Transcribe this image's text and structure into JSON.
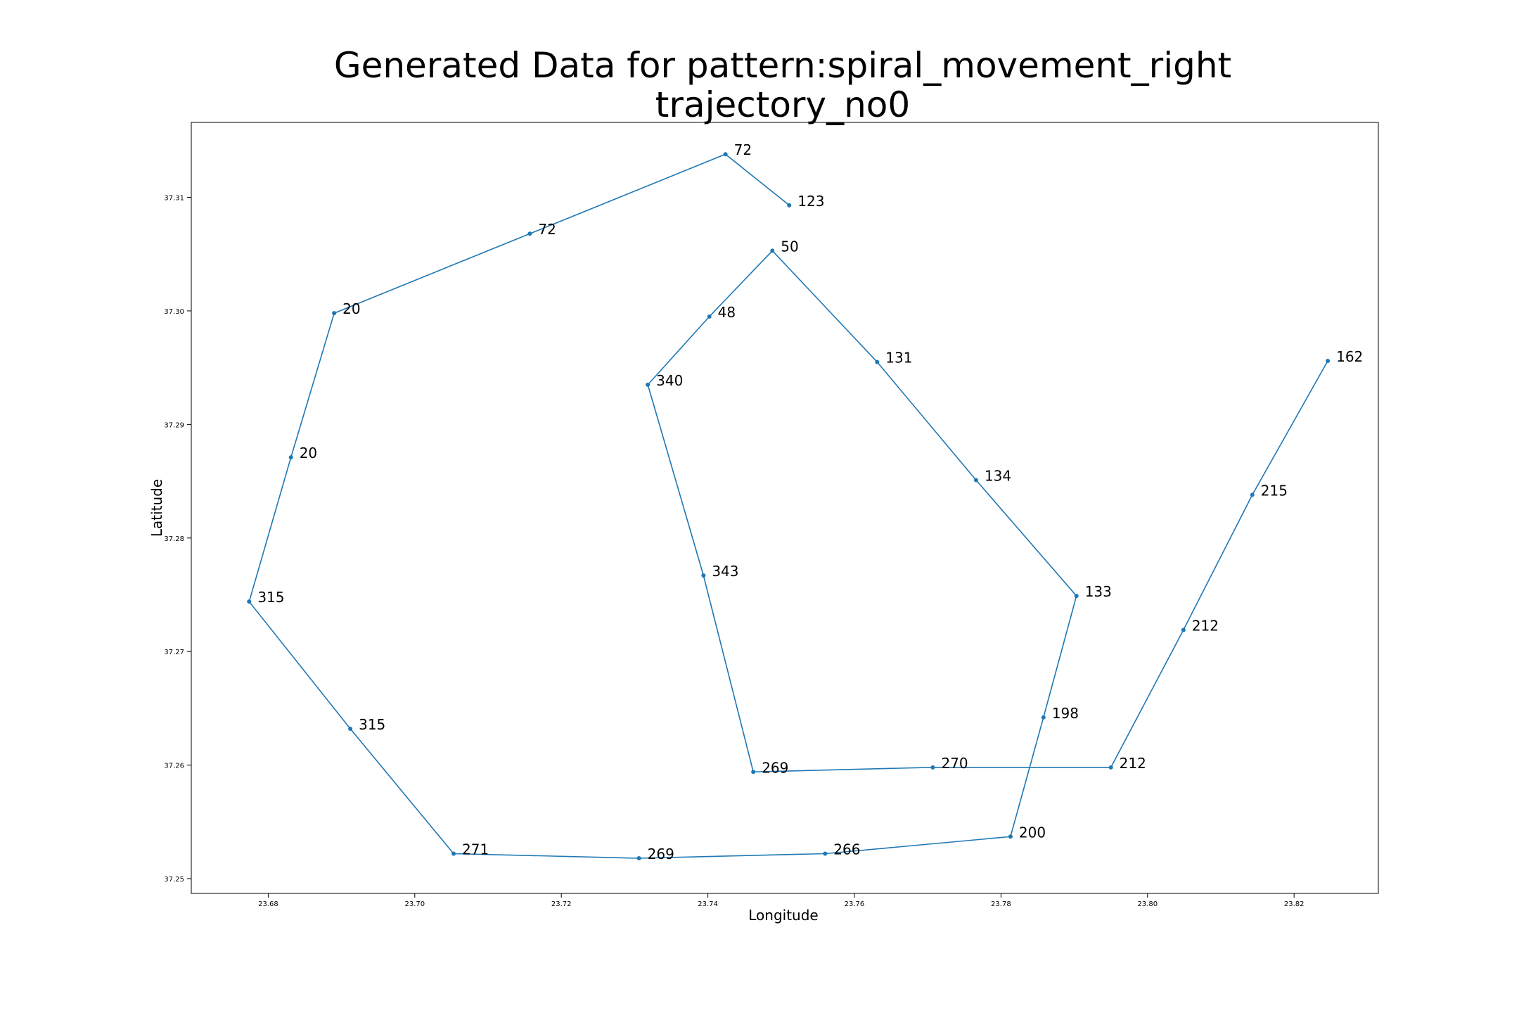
{
  "chart_data": {
    "type": "line",
    "title": [
      "Generated Data for pattern:spiral_movement_right",
      "trajectory_no0"
    ],
    "xlabel": "Longitude",
    "ylabel": "Latitude",
    "xlim": [
      23.6695,
      23.8315
    ],
    "ylim": [
      37.2487,
      37.3166
    ],
    "xticks": [
      23.68,
      23.7,
      23.72,
      23.74,
      23.76,
      23.78,
      23.8,
      23.82
    ],
    "xtick_labels": [
      "23.68",
      "23.70",
      "23.72",
      "23.74",
      "23.76",
      "23.78",
      "23.80",
      "23.82"
    ],
    "yticks": [
      37.25,
      37.26,
      37.27,
      37.28,
      37.29,
      37.3,
      37.31
    ],
    "ytick_labels": [
      "37.25",
      "37.26",
      "37.27",
      "37.28",
      "37.29",
      "37.30",
      "37.31"
    ],
    "grid": false,
    "line_color": "#1f77b4",
    "series": [
      {
        "points": [
          {
            "x": 23.7511,
            "y": 37.3093,
            "label": "123"
          },
          {
            "x": 23.7424,
            "y": 37.3138,
            "label": "72"
          },
          {
            "x": 23.7157,
            "y": 37.3068,
            "label": "72"
          },
          {
            "x": 23.689,
            "y": 37.2998,
            "label": "20"
          },
          {
            "x": 23.6831,
            "y": 37.2871,
            "label": "20"
          },
          {
            "x": 23.6774,
            "y": 37.2744,
            "label": "315"
          },
          {
            "x": 23.6912,
            "y": 37.2632,
            "label": "315"
          },
          {
            "x": 23.7053,
            "y": 37.2522,
            "label": "271"
          },
          {
            "x": 23.7306,
            "y": 37.2518,
            "label": "269"
          },
          {
            "x": 23.756,
            "y": 37.2522,
            "label": "266"
          },
          {
            "x": 23.7813,
            "y": 37.2537,
            "label": "200"
          },
          {
            "x": 23.7858,
            "y": 37.2642,
            "label": "198"
          },
          {
            "x": 23.7903,
            "y": 37.2749,
            "label": "133"
          },
          {
            "x": 23.7766,
            "y": 37.2851,
            "label": "134"
          },
          {
            "x": 23.7631,
            "y": 37.2955,
            "label": "131"
          },
          {
            "x": 23.7488,
            "y": 37.3053,
            "label": "50"
          },
          {
            "x": 23.7402,
            "y": 37.2995,
            "label": "48"
          },
          {
            "x": 23.7318,
            "y": 37.2935,
            "label": "340"
          },
          {
            "x": 23.7394,
            "y": 37.2767,
            "label": "343"
          },
          {
            "x": 23.7462,
            "y": 37.2594,
            "label": "269"
          },
          {
            "x": 23.7707,
            "y": 37.2598,
            "label": "270"
          },
          {
            "x": 23.795,
            "y": 37.2598,
            "label": "212"
          },
          {
            "x": 23.8049,
            "y": 37.2719,
            "label": "212"
          },
          {
            "x": 23.8143,
            "y": 37.2838,
            "label": "215"
          },
          {
            "x": 23.8246,
            "y": 37.2956,
            "label": "162"
          }
        ]
      }
    ]
  }
}
